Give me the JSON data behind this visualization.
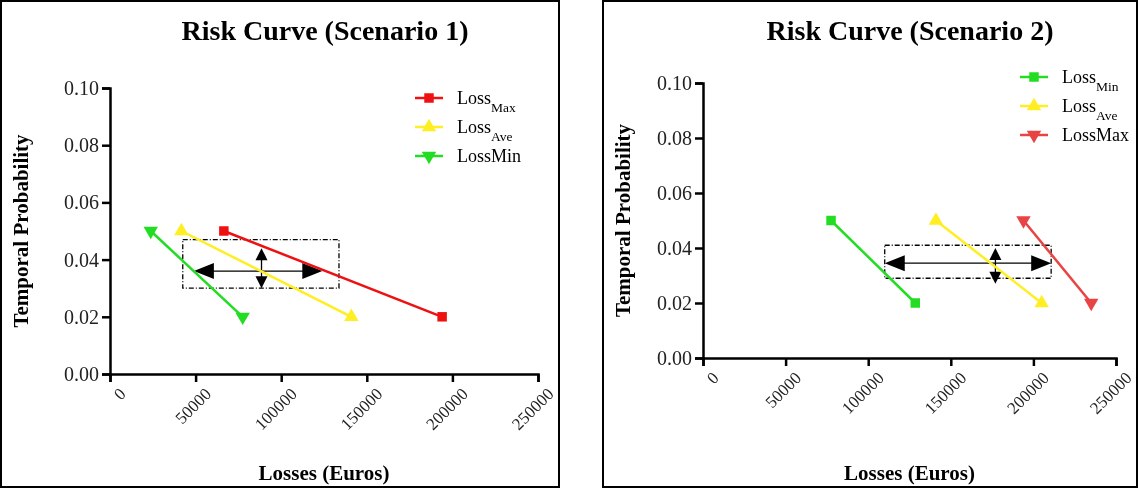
{
  "chart_data": [
    {
      "type": "line",
      "title": "Risk Curve (Scenario 1)",
      "xlabel": "Losses (Euros)",
      "ylabel": "Temporal Probability",
      "xlim": [
        0,
        250000
      ],
      "xticks": [
        0,
        50000,
        100000,
        150000,
        200000,
        250000
      ],
      "ylim": [
        0,
        0.1
      ],
      "yticks": [
        {
          "value": 0,
          "label": "0.00"
        },
        {
          "value": 0.02,
          "label": "0.02"
        },
        {
          "value": 0.04,
          "label": "0.04"
        },
        {
          "value": 0.06,
          "label": "0.06"
        },
        {
          "value": 0.08,
          "label": "0.08"
        },
        {
          "value": 0.1,
          "label": "0.10"
        }
      ],
      "grid": false,
      "legend": "top right",
      "series": [
        {
          "name": "Loss$_{Max}$",
          "color": "#ee1111",
          "marker": "square",
          "x": [
            66500,
            194000
          ],
          "values": [
            0.05,
            0.02
          ]
        },
        {
          "name": "Loss$_{Ave}$",
          "color": "#ffee22",
          "marker": "triangle",
          "x": [
            41700,
            141000
          ],
          "values": [
            0.05,
            0.02
          ]
        },
        {
          "name": "LossMin",
          "color": "#22dd22",
          "marker": "triangle-down",
          "x": [
            23800,
            77500
          ],
          "values": [
            0.05,
            0.02
          ]
        }
      ]
    },
    {
      "type": "line",
      "title": "Risk Curve (Scenario 2)",
      "xlabel": "Losses (Euros)",
      "ylabel": "Temporal Probability",
      "xlim": [
        0,
        250000
      ],
      "xticks": [
        0,
        50000,
        100000,
        150000,
        200000,
        250000
      ],
      "ylim": [
        0,
        0.1
      ],
      "yticks": [
        {
          "value": 0,
          "label": "0.00"
        },
        {
          "value": 0.02,
          "label": "0.02"
        },
        {
          "value": 0.04,
          "label": "0.04"
        },
        {
          "value": 0.06,
          "label": "0.06"
        },
        {
          "value": 0.08,
          "label": "0.08"
        },
        {
          "value": 0.1,
          "label": "0.10"
        }
      ],
      "grid": false,
      "legend": "top right",
      "series": [
        {
          "name": "Loss$_{Min}$",
          "color": "#22dd22",
          "marker": "square",
          "x": [
            77500,
            128500
          ],
          "values": [
            0.05,
            0.02
          ]
        },
        {
          "name": "Loss$_{Ave}$",
          "color": "#ffee22",
          "marker": "triangle",
          "x": [
            141000,
            205000
          ],
          "values": [
            0.05,
            0.02
          ]
        },
        {
          "name": "LossMax",
          "color": "#e84444",
          "marker": "triangle-down",
          "x": [
            194000,
            235000
          ],
          "values": [
            0.05,
            0.02
          ]
        }
      ]
    }
  ]
}
